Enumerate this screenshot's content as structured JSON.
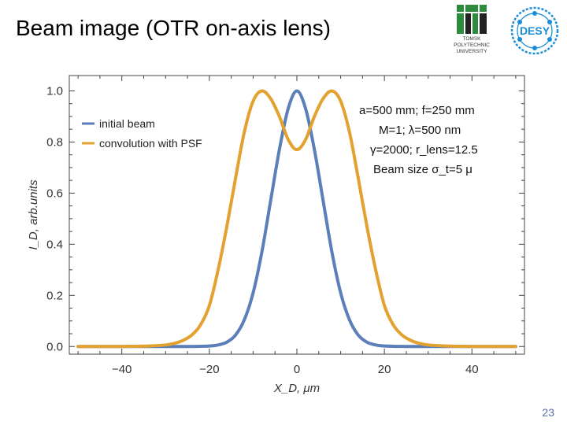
{
  "slide": {
    "title": "Beam image (OTR on-axis lens)",
    "page_number": "23"
  },
  "logos": {
    "tpu_text": "TOMSK\nPOLYTECHNIC\nUNIVERSITY",
    "desy_text": "DESY"
  },
  "colors": {
    "initial_beam": "#5b7fb8",
    "convolution": "#e3a12f",
    "axis": "#444444",
    "desy_blue": "#1a8dd8",
    "tpu_green": "#2e8b3e"
  },
  "chart_data": {
    "type": "line",
    "xlabel": "X_D, μm",
    "ylabel": "I_D, arb.units",
    "xlim": [
      -52,
      52
    ],
    "ylim": [
      -0.03,
      1.06
    ],
    "x_ticks": [
      -40,
      -20,
      0,
      20,
      40
    ],
    "x_tick_labels": [
      "−40",
      "−20",
      "0",
      "20",
      "40"
    ],
    "y_ticks": [
      0.0,
      0.2,
      0.4,
      0.6,
      0.8,
      1.0
    ],
    "y_tick_labels": [
      "0.0",
      "0.2",
      "0.4",
      "0.6",
      "0.8",
      "1.0"
    ],
    "legend": {
      "position": "top-left",
      "entries": [
        "initial beam",
        "convolution with PSF"
      ]
    },
    "annotations": [
      "a=500 mm; f=250 mm",
      "M=1; λ=500 nm",
      "γ=2000; r_lens=12.5",
      "Beam size σ_t=5 μ"
    ],
    "series": [
      {
        "name": "initial beam",
        "x": [
          -50,
          -40,
          -30,
          -25,
          -20,
          -18,
          -16,
          -14,
          -12,
          -10,
          -8,
          -6,
          -4,
          -2,
          0,
          2,
          4,
          6,
          8,
          10,
          12,
          14,
          16,
          18,
          20,
          25,
          30,
          40,
          50
        ],
        "values": [
          0,
          0,
          0,
          0,
          0.002,
          0.006,
          0.017,
          0.045,
          0.105,
          0.21,
          0.37,
          0.57,
          0.77,
          0.93,
          1.0,
          0.93,
          0.77,
          0.57,
          0.37,
          0.21,
          0.105,
          0.045,
          0.017,
          0.006,
          0.002,
          0,
          0,
          0,
          0
        ]
      },
      {
        "name": "convolution with PSF",
        "x": [
          -50,
          -40,
          -34,
          -30,
          -28,
          -26,
          -24,
          -22,
          -20,
          -18,
          -16,
          -14,
          -12,
          -10,
          -8,
          -6,
          -4,
          -2,
          0,
          2,
          4,
          6,
          8,
          10,
          12,
          14,
          16,
          18,
          20,
          22,
          24,
          26,
          28,
          30,
          34,
          40,
          50
        ],
        "values": [
          0,
          0,
          0.002,
          0.006,
          0.012,
          0.024,
          0.045,
          0.085,
          0.16,
          0.3,
          0.47,
          0.66,
          0.84,
          0.96,
          1.0,
          0.97,
          0.9,
          0.81,
          0.77,
          0.81,
          0.9,
          0.97,
          1.0,
          0.96,
          0.84,
          0.66,
          0.47,
          0.3,
          0.16,
          0.085,
          0.045,
          0.024,
          0.012,
          0.006,
          0.002,
          0,
          0
        ]
      }
    ]
  }
}
